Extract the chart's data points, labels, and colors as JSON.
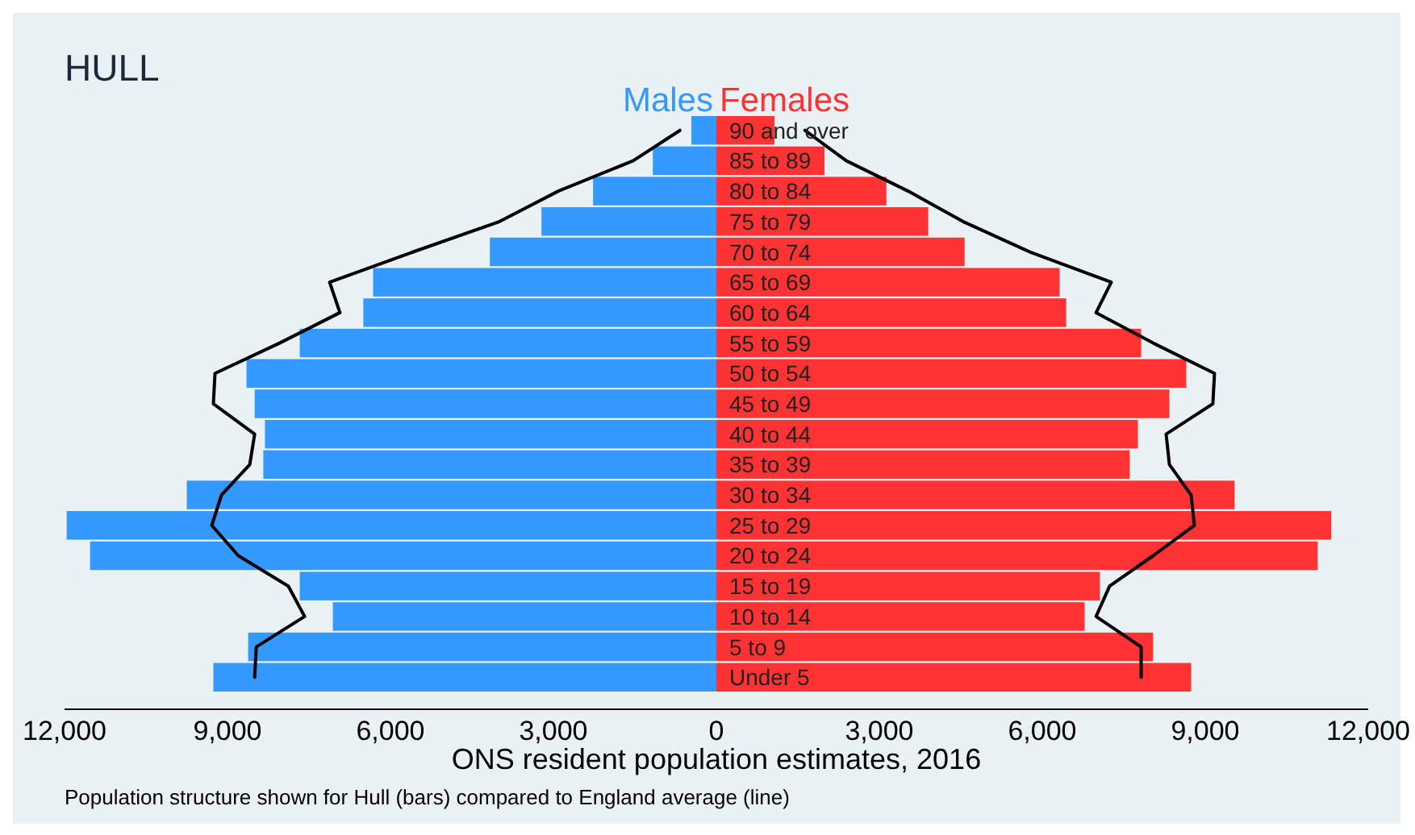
{
  "chart_data": {
    "type": "bar",
    "orientation": "horizontal",
    "title": "HULL",
    "xlabel": "ONS resident population estimates, 2016",
    "annotations": [
      "Population structure shown for Hull (bars) compared to England average (line)"
    ],
    "categories": [
      "90 and over",
      "85 to 89",
      "80 to 84",
      "75 to 79",
      "70 to 74",
      "65 to 69",
      "60 to 64",
      "55 to 59",
      "50 to 54",
      "45 to 49",
      "40 to 44",
      "35 to 39",
      "30 to 34",
      "25 to 29",
      "20 to 24",
      "15 to 19",
      "10 to 14",
      "5 to 9",
      "Under 5"
    ],
    "xlim": [
      -12000,
      12000
    ],
    "xticks": [
      {
        "value": -12000,
        "label": "12,000"
      },
      {
        "value": -9000,
        "label": "9,000"
      },
      {
        "value": -6000,
        "label": "6,000"
      },
      {
        "value": -3000,
        "label": "3,000"
      },
      0,
      {
        "value": 3000,
        "label": "3,000"
      },
      {
        "value": 6000,
        "label": "6,000"
      },
      {
        "value": 9000,
        "label": "9,000"
      },
      {
        "value": 12000,
        "label": "12,000"
      }
    ],
    "legend": "top",
    "grid": false,
    "stacked": true,
    "series": [
      {
        "name": "Males",
        "color": "#3399ff",
        "values": [
          -460,
          -1170,
          -2270,
          -3220,
          -4170,
          -6320,
          -6500,
          -7670,
          -8650,
          -8500,
          -8310,
          -8340,
          -9750,
          -11960,
          -11530,
          -7670,
          -7060,
          -8620,
          -9260
        ]
      },
      {
        "name": "Females",
        "color": "#ff3333",
        "values": [
          1070,
          1990,
          3130,
          3900,
          4570,
          6320,
          6440,
          7820,
          8650,
          8340,
          7760,
          7610,
          9540,
          11320,
          11070,
          7060,
          6780,
          8040,
          8740
        ]
      },
      {
        "type": "line",
        "color": "#000000",
        "values": [
          -670,
          -1530,
          -2910,
          -3990,
          -5580,
          -7120,
          -6930,
          -8040,
          -9230,
          -9260,
          -8500,
          -8590,
          -9110,
          -9290,
          -8800,
          -7880,
          -7580,
          -8470,
          -8500
        ]
      },
      {
        "type": "line",
        "color": "#000000",
        "values": [
          1630,
          2390,
          3530,
          4540,
          5770,
          7270,
          6990,
          8040,
          9170,
          9140,
          8280,
          8340,
          8740,
          8800,
          8040,
          7240,
          6990,
          7820,
          7820
        ]
      }
    ]
  }
}
